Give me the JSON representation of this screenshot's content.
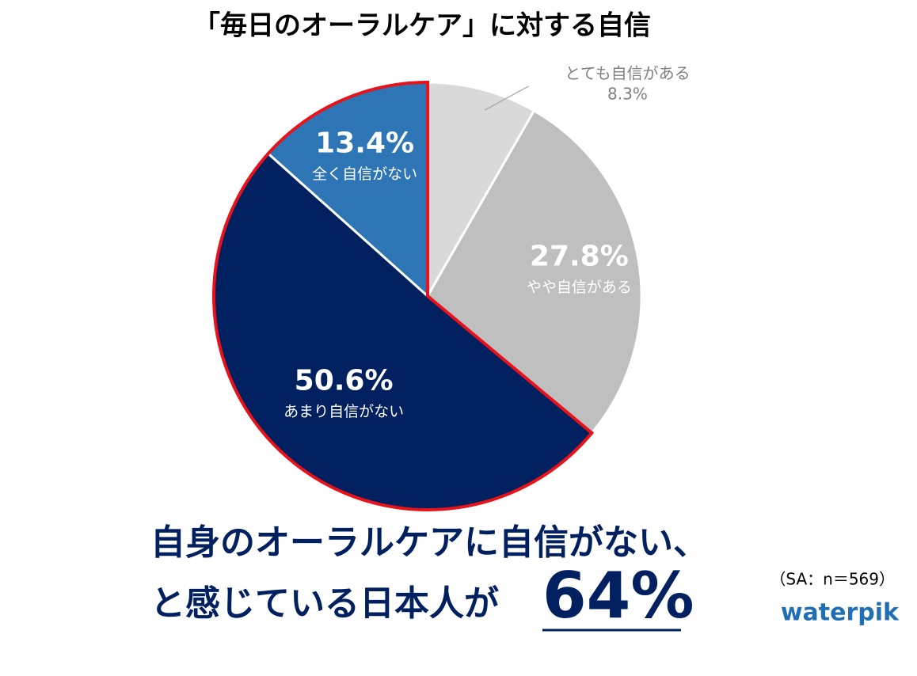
{
  "chart_data": {
    "type": "pie",
    "title": "「毎日のオーラルケア」に対する自信",
    "categories": [
      "とても自信がある",
      "やや自信がある",
      "あまり自信がない",
      "全く自信がない"
    ],
    "values": [
      8.3,
      27.8,
      50.6,
      13.4
    ],
    "value_labels": [
      "8.3%",
      "27.8%",
      "50.6%",
      "13.4%"
    ],
    "colors": [
      "#d9d9d9",
      "#bfbfbf",
      "#002060",
      "#2e75b6"
    ],
    "highlight": [
      2,
      3
    ],
    "highlight_color": "#e8121a"
  },
  "annotation": {
    "lines": [
      "自身のオーラルケアに自信がない、",
      "と感じている日本人が"
    ],
    "emphasis": "64%"
  },
  "note": "（SA：n＝569）",
  "logo": "waterpik"
}
